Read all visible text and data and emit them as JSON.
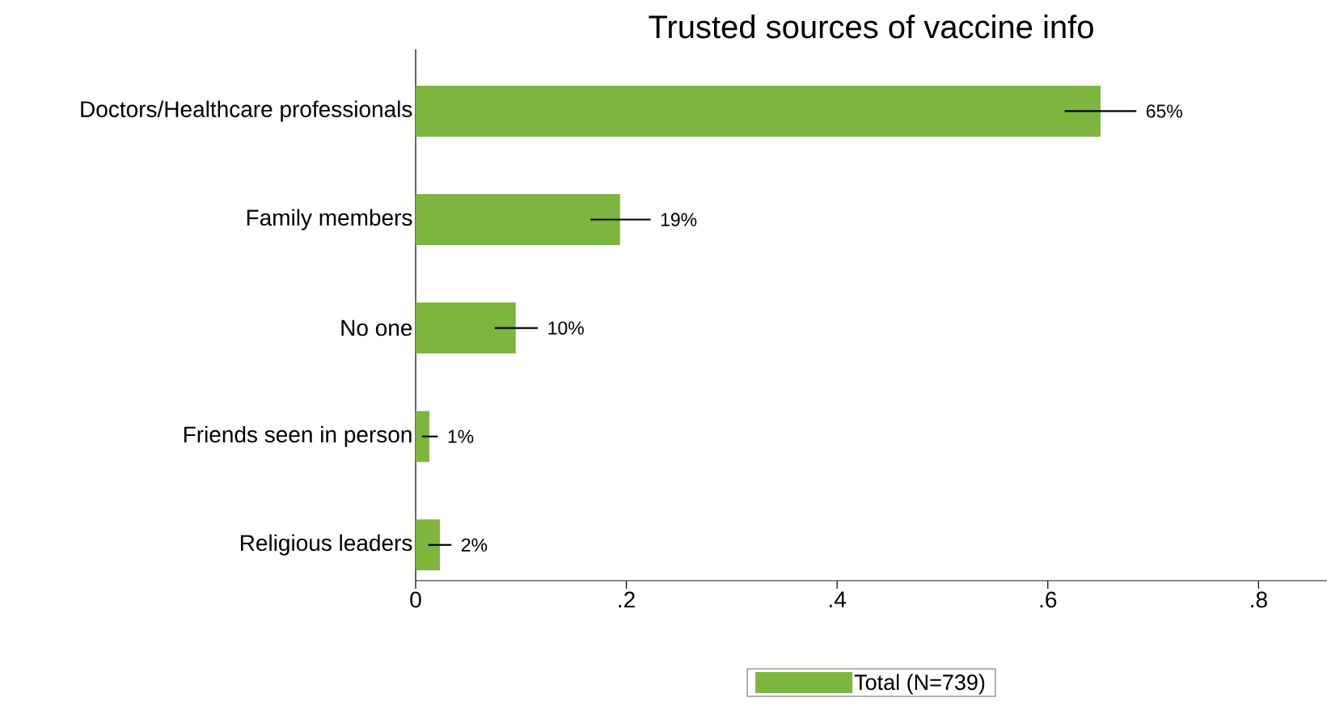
{
  "chart_data": {
    "type": "bar",
    "orientation": "horizontal",
    "title": "Trusted sources of vaccine info",
    "categories": [
      "Doctors/Healthcare professionals",
      "Family members",
      "No one",
      "Friends seen in person",
      "Religious leaders"
    ],
    "series": [
      {
        "name": "Total (N=739)",
        "color": "#7db53f",
        "values": [
          0.65,
          0.194,
          0.095,
          0.013,
          0.023
        ],
        "errors": [
          [
            0.616,
            0.684
          ],
          [
            0.166,
            0.223
          ],
          [
            0.075,
            0.116
          ],
          [
            0.006,
            0.021
          ],
          [
            0.012,
            0.034
          ]
        ],
        "value_labels": [
          "65%",
          "19%",
          "10%",
          "1%",
          "2%"
        ]
      }
    ],
    "xlim": [
      0,
      0.865
    ],
    "xticks": [
      0,
      {
        "value": 0.2,
        "label": ".2"
      },
      {
        "value": 0.4,
        "label": ".4"
      },
      {
        "value": 0.6,
        "label": ".6"
      },
      {
        "value": 0.8,
        "label": ".8"
      }
    ],
    "legend": "bottom"
  }
}
